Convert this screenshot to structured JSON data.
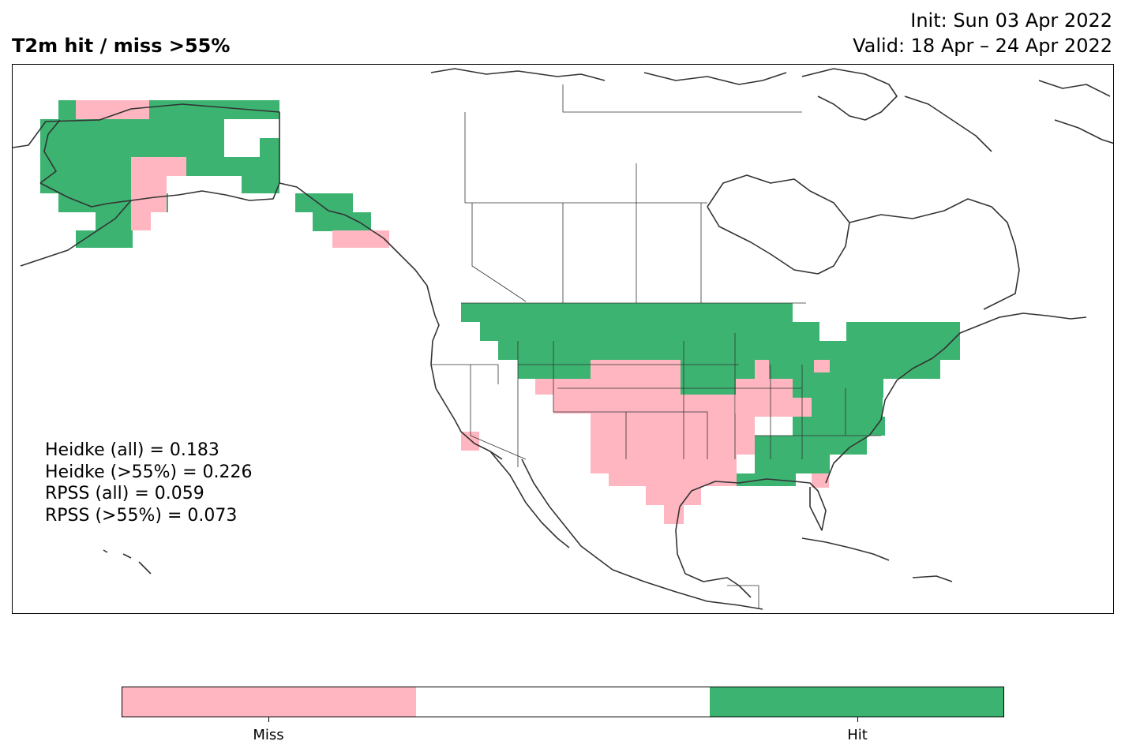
{
  "header": {
    "title": "T2m hit / miss  >55%",
    "init": "Init: Sun 03 Apr 2022",
    "valid": "Valid: 18 Apr – 24 Apr 2022"
  },
  "stats": [
    "Heidke (all) = 0.183",
    "Heidke (>55%) = 0.226",
    "RPSS (all) = 0.059",
    "RPSS (>55%) = 0.073"
  ],
  "colorbar": {
    "segments": [
      {
        "label": "Miss",
        "color": "#ffb6c1"
      },
      {
        "label": "",
        "color": "#ffffff"
      },
      {
        "label": "Hit",
        "color": "#3cb371"
      }
    ]
  },
  "map": {
    "extent": {
      "lon": [
        -170,
        -50
      ],
      "lat": [
        15,
        75
      ]
    },
    "hit_color": "#3cb371",
    "miss_color": "#ffb6c1",
    "coast_color": "#333333",
    "regions": [
      {
        "name": "Alaska west",
        "class": "hit"
      },
      {
        "name": "Alaska northwest",
        "class": "miss"
      },
      {
        "name": "Alaska interior",
        "class": "miss"
      },
      {
        "name": "Alaska southeast panhandle",
        "class": "hit"
      },
      {
        "name": "British Columbia coast",
        "class": "miss"
      },
      {
        "name": "Northern US plains & Great Lakes",
        "class": "hit"
      },
      {
        "name": "Northeast US",
        "class": "hit"
      },
      {
        "name": "Southeast US",
        "class": "hit"
      },
      {
        "name": "Central & Southern Plains",
        "class": "miss"
      },
      {
        "name": "Midwest",
        "class": "miss"
      },
      {
        "name": "Southern California",
        "class": "miss"
      }
    ]
  }
}
